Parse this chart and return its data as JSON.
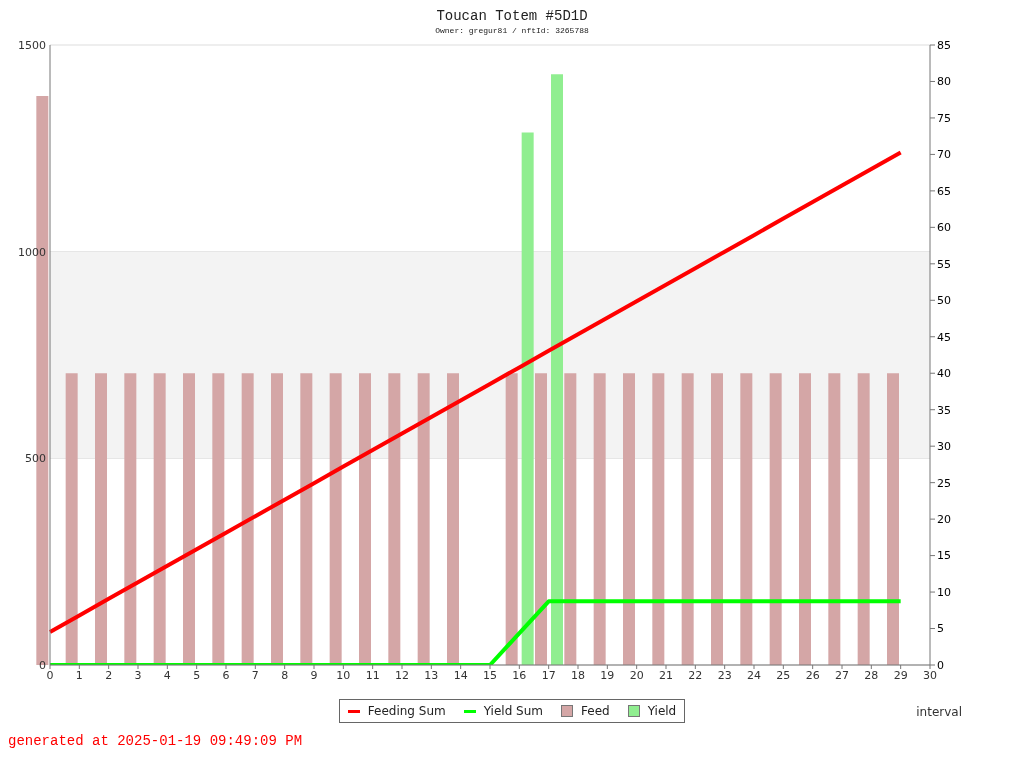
{
  "chart_data": {
    "type": "bar",
    "title": "Toucan Totem #5D1D",
    "subtitle": "Owner: gregur81 / nftId: 3265788",
    "xlabel": "interval",
    "x": [
      0,
      1,
      2,
      3,
      4,
      5,
      6,
      7,
      8,
      9,
      10,
      11,
      12,
      13,
      14,
      15,
      16,
      17,
      18,
      19,
      20,
      21,
      22,
      23,
      24,
      25,
      26,
      27,
      28,
      29
    ],
    "series": [
      {
        "name": "Feeding Sum",
        "type": "line",
        "color": "#ff0000",
        "values": [
          80,
          120,
          160,
          200,
          240,
          280,
          320,
          360,
          400,
          440,
          480,
          520,
          560,
          600,
          640,
          680,
          720,
          760,
          800,
          840,
          880,
          920,
          960,
          1000,
          1040,
          1080,
          1120,
          1160,
          1200,
          1240
        ]
      },
      {
        "name": "Yield Sum",
        "type": "line",
        "color": "#00ff00",
        "x": [
          0,
          15,
          17,
          29
        ],
        "values": [
          0,
          0,
          154,
          154
        ]
      },
      {
        "name": "Feed",
        "axis": "y2",
        "color": "#d4a6a6",
        "values": [
          78,
          40,
          40,
          40,
          40,
          40,
          40,
          40,
          40,
          40,
          40,
          40,
          40,
          40,
          40,
          null,
          40,
          40,
          40,
          40,
          40,
          40,
          40,
          40,
          40,
          40,
          40,
          40,
          40,
          40
        ]
      },
      {
        "name": "Yield",
        "axis": "y2",
        "color": "#90ee90",
        "x": [
          16,
          17
        ],
        "values": [
          73,
          81
        ]
      }
    ],
    "xlim": [
      0,
      30
    ],
    "xticks": [
      0,
      1,
      2,
      3,
      4,
      5,
      6,
      7,
      8,
      9,
      10,
      11,
      12,
      13,
      14,
      15,
      16,
      17,
      18,
      19,
      20,
      21,
      22,
      23,
      24,
      25,
      26,
      27,
      28,
      29,
      30
    ],
    "ylim": [
      0,
      1500
    ],
    "yticks": [
      0,
      500,
      1000,
      1500
    ],
    "y2lim": [
      0,
      85
    ],
    "y2ticks": [
      0,
      5,
      10,
      15,
      20,
      25,
      30,
      35,
      40,
      45,
      50,
      55,
      60,
      65,
      70,
      75,
      80,
      85
    ],
    "bands": [
      {
        "axis": "y",
        "from": 500,
        "to": 1000,
        "color": "#f3f3f3"
      }
    ],
    "grid": "y",
    "legend": "bottom",
    "annotations": [
      "generated at 2025-01-19 09:49:09 PM"
    ]
  }
}
